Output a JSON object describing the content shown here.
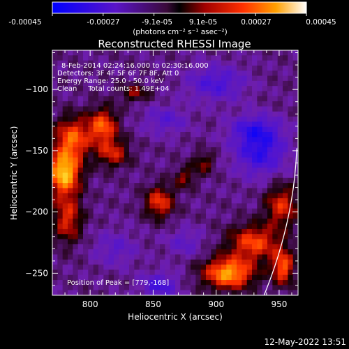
{
  "figure": {
    "title": "Reconstructed RHESSI Image",
    "footer_date": "12-May-2022 13:51"
  },
  "colorbar": {
    "ticks": [
      "-0.00045",
      "-0.00027",
      "-9.1e-05",
      "9.1e-05",
      "0.00027",
      "0.00045"
    ],
    "unit_label": "(photons cm⁻² s⁻¹ asec⁻²)",
    "range": [
      -0.00045,
      0.00045
    ]
  },
  "annotations": {
    "time_range": "8-Feb-2014 02:24:16.000 to 02:30:16.000",
    "detectors": "Detectors: 3F 4F 5F 6F 7F 8F, Att 0",
    "energy_range": "Energy Range: 25.0 - 50.0 keV",
    "clean_counts": "Clean     Total counts: 1.49E+04",
    "peak": "Position of Peak = [779,-168]"
  },
  "chart_data": {
    "type": "heatmap",
    "title": "Reconstructed RHESSI Image",
    "xlabel": "Heliocentric X (arcsec)",
    "ylabel": "Heliocentric Y (arcsec)",
    "xlim": [
      770,
      965
    ],
    "ylim": [
      -268,
      -68
    ],
    "x_ticks": [
      800,
      850,
      900,
      950
    ],
    "y_ticks": [
      -100,
      -150,
      -200,
      -250
    ],
    "x_tick_labels": [
      "800",
      "850",
      "900",
      "950"
    ],
    "y_tick_labels": [
      "−100",
      "−150",
      "−200",
      "−250"
    ],
    "colormap": "rhessi-blue-purple-red-yellow-white",
    "value_range": [
      -0.00045,
      0.00045
    ],
    "peak_position": [
      779,
      -168
    ],
    "total_counts": 14900,
    "energy_range_kev": [
      25.0,
      50.0
    ],
    "bright_sources": [
      {
        "x": 779,
        "y": -168,
        "intensity": 1.0,
        "sx": 9,
        "sy": 12
      },
      {
        "x": 786,
        "y": -140,
        "intensity": 0.7,
        "sx": 10,
        "sy": 12
      },
      {
        "x": 810,
        "y": -130,
        "intensity": 0.7,
        "sx": 8,
        "sy": 10
      },
      {
        "x": 818,
        "y": -152,
        "intensity": 0.5,
        "sx": 9,
        "sy": 8
      },
      {
        "x": 782,
        "y": -205,
        "intensity": 0.55,
        "sx": 8,
        "sy": 14
      },
      {
        "x": 855,
        "y": -192,
        "intensity": 0.6,
        "sx": 8,
        "sy": 9
      },
      {
        "x": 875,
        "y": -172,
        "intensity": 0.35,
        "sx": 6,
        "sy": 6
      },
      {
        "x": 910,
        "y": -250,
        "intensity": 0.9,
        "sx": 14,
        "sy": 9
      },
      {
        "x": 930,
        "y": -225,
        "intensity": 0.65,
        "sx": 14,
        "sy": 10
      },
      {
        "x": 952,
        "y": -195,
        "intensity": 0.55,
        "sx": 9,
        "sy": 12
      },
      {
        "x": 953,
        "y": -245,
        "intensity": 0.7,
        "sx": 6,
        "sy": 10
      },
      {
        "x": 835,
        "y": -103,
        "intensity": 0.35,
        "sx": 8,
        "sy": 5
      },
      {
        "x": 890,
        "y": -160,
        "intensity": 0.35,
        "sx": 6,
        "sy": 6
      }
    ],
    "dark_sources": [
      {
        "x": 935,
        "y": -150,
        "intensity": -0.55,
        "sx": 14,
        "sy": 14
      },
      {
        "x": 930,
        "y": -132,
        "intensity": -0.35,
        "sx": 14,
        "sy": 8
      },
      {
        "x": 855,
        "y": -260,
        "intensity": -0.45,
        "sx": 10,
        "sy": 7
      },
      {
        "x": 900,
        "y": -95,
        "intensity": -0.4,
        "sx": 16,
        "sy": 10
      },
      {
        "x": 860,
        "y": -125,
        "intensity": -0.3,
        "sx": 12,
        "sy": 8
      },
      {
        "x": 820,
        "y": -230,
        "intensity": -0.25,
        "sx": 12,
        "sy": 10
      },
      {
        "x": 875,
        "y": -225,
        "intensity": -0.25,
        "sx": 10,
        "sy": 8
      }
    ],
    "limb_arc": {
      "x_top": 964,
      "y_top": -148,
      "x_bottom": 938,
      "y_bottom": -268
    }
  }
}
